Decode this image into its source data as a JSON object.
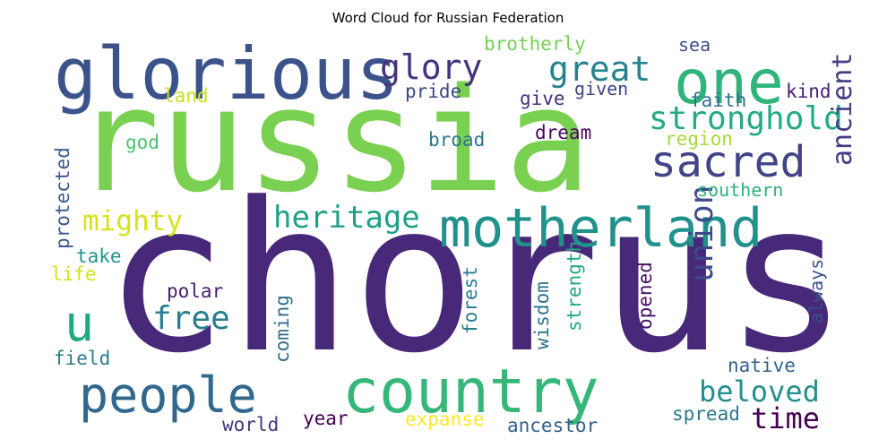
{
  "title": "Word Cloud for Russian Federation",
  "words": [
    {
      "text": "chorus",
      "color": "#482878"
    },
    {
      "text": "russia",
      "color": "#7ad151"
    },
    {
      "text": "glorious",
      "color": "#3b528b"
    },
    {
      "text": "one",
      "color": "#2fb47c"
    },
    {
      "text": "motherland",
      "color": "#21918c"
    },
    {
      "text": "country",
      "color": "#35b779"
    },
    {
      "text": "people",
      "color": "#31688e"
    },
    {
      "text": "sacred",
      "color": "#414487"
    },
    {
      "text": "stronghold",
      "color": "#25ab82"
    },
    {
      "text": "great",
      "color": "#26828e"
    },
    {
      "text": "glory",
      "color": "#46337e"
    },
    {
      "text": "mighty",
      "color": "#d8e219"
    },
    {
      "text": "heritage",
      "color": "#1fa088"
    },
    {
      "text": "free",
      "color": "#277f8e"
    },
    {
      "text": "u",
      "color": "#22a785"
    },
    {
      "text": "union",
      "color": "#3e4a89"
    },
    {
      "text": "ancient",
      "color": "#433e85"
    },
    {
      "text": "beloved",
      "color": "#218f8d"
    },
    {
      "text": "time",
      "color": "#440154"
    },
    {
      "text": "brotherly",
      "color": "#75d054"
    },
    {
      "text": "sea",
      "color": "#3b518b"
    },
    {
      "text": "land",
      "color": "#cde11d"
    },
    {
      "text": "pride",
      "color": "#3f4788"
    },
    {
      "text": "give",
      "color": "#472f7d"
    },
    {
      "text": "given",
      "color": "#414487"
    },
    {
      "text": "faith",
      "color": "#2c718e"
    },
    {
      "text": "kind",
      "color": "#481f70"
    },
    {
      "text": "god",
      "color": "#4ac16d"
    },
    {
      "text": "broad",
      "color": "#2a788e"
    },
    {
      "text": "dream",
      "color": "#46085c"
    },
    {
      "text": "region",
      "color": "#a5db36"
    },
    {
      "text": "protected",
      "color": "#38588c"
    },
    {
      "text": "southern",
      "color": "#2db27d"
    },
    {
      "text": "take",
      "color": "#20928c"
    },
    {
      "text": "life",
      "color": "#d2e21b"
    },
    {
      "text": "polar",
      "color": "#481b6d"
    },
    {
      "text": "coming",
      "color": "#2e6e8e"
    },
    {
      "text": "forest",
      "color": "#277e8e"
    },
    {
      "text": "wisdom",
      "color": "#2c738e"
    },
    {
      "text": "strength",
      "color": "#22a884"
    },
    {
      "text": "opened",
      "color": "#471063"
    },
    {
      "text": "always",
      "color": "#3a538b"
    },
    {
      "text": "field",
      "color": "#287d8e"
    },
    {
      "text": "native",
      "color": "#33638d"
    },
    {
      "text": "world",
      "color": "#453581"
    },
    {
      "text": "year",
      "color": "#440154"
    },
    {
      "text": "expanse",
      "color": "#fde725"
    },
    {
      "text": "ancestor",
      "color": "#34618d"
    },
    {
      "text": "spread",
      "color": "#2a788e"
    }
  ]
}
